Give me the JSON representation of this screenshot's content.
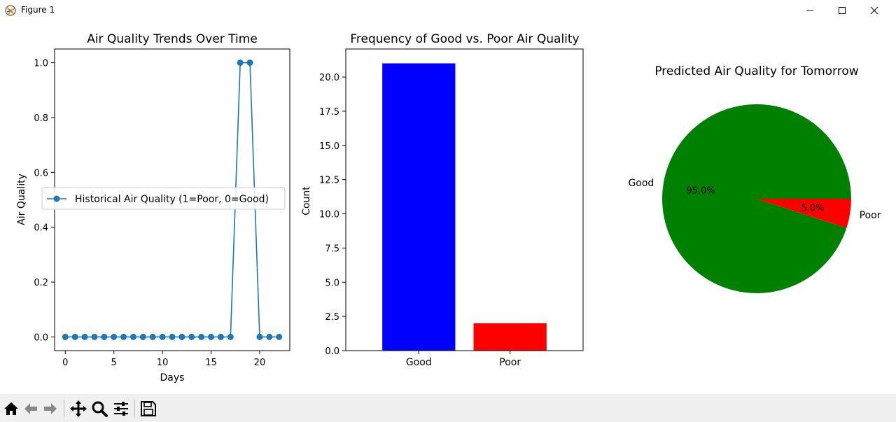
{
  "window": {
    "title": "Figure 1"
  },
  "toolbar": {
    "items": [
      {
        "name": "home-icon"
      },
      {
        "name": "back-arrow-icon"
      },
      {
        "name": "forward-arrow-icon"
      },
      {
        "name": "pan-icon"
      },
      {
        "name": "zoom-icon"
      },
      {
        "name": "configure-subplots-icon"
      },
      {
        "name": "save-icon"
      }
    ]
  },
  "chart_data": [
    {
      "type": "line",
      "title": "Air Quality Trends Over Time",
      "xlabel": "Days",
      "ylabel": "Air Quality",
      "xlim": [
        -1.1,
        23.1
      ],
      "ylim": [
        -0.05,
        1.05
      ],
      "xticks": [
        0,
        5,
        10,
        15,
        20
      ],
      "yticks": [
        0.0,
        0.2,
        0.4,
        0.6,
        0.8,
        1.0
      ],
      "ytick_labels": [
        "0.0",
        "0.2",
        "0.4",
        "0.6",
        "0.8",
        "1.0"
      ],
      "grid": false,
      "legend": "center-left",
      "series": [
        {
          "name": "Historical Air Quality (1=Poor, 0=Good)",
          "color": "#1f77b4",
          "marker": "circle",
          "x": [
            0,
            1,
            2,
            3,
            4,
            5,
            6,
            7,
            8,
            9,
            10,
            11,
            12,
            13,
            14,
            15,
            16,
            17,
            18,
            19,
            20,
            21,
            22
          ],
          "y": [
            0,
            0,
            0,
            0,
            0,
            0,
            0,
            0,
            0,
            0,
            0,
            0,
            0,
            0,
            0,
            0,
            0,
            0,
            1,
            1,
            0,
            0,
            0
          ]
        }
      ]
    },
    {
      "type": "bar",
      "title": "Frequency of Good vs. Poor Air Quality",
      "xlabel": "",
      "ylabel": "Count",
      "categories": [
        "Good",
        "Poor"
      ],
      "values": [
        21,
        2
      ],
      "colors": [
        "#0000ff",
        "#ff0000"
      ],
      "ylim": [
        0,
        22.05
      ],
      "yticks": [
        0.0,
        2.5,
        5.0,
        7.5,
        10.0,
        12.5,
        15.0,
        17.5,
        20.0
      ],
      "ytick_labels": [
        "0.0",
        "2.5",
        "5.0",
        "7.5",
        "10.0",
        "12.5",
        "15.0",
        "17.5",
        "20.0"
      ],
      "grid": false
    },
    {
      "type": "pie",
      "title": "Predicted Air Quality for Tomorrow",
      "labels": [
        "Good",
        "Poor"
      ],
      "values": [
        95.0,
        5.0
      ],
      "pct_labels": [
        "95.0%",
        "5.0%"
      ],
      "colors": [
        "#008000",
        "#ff0000"
      ]
    }
  ]
}
